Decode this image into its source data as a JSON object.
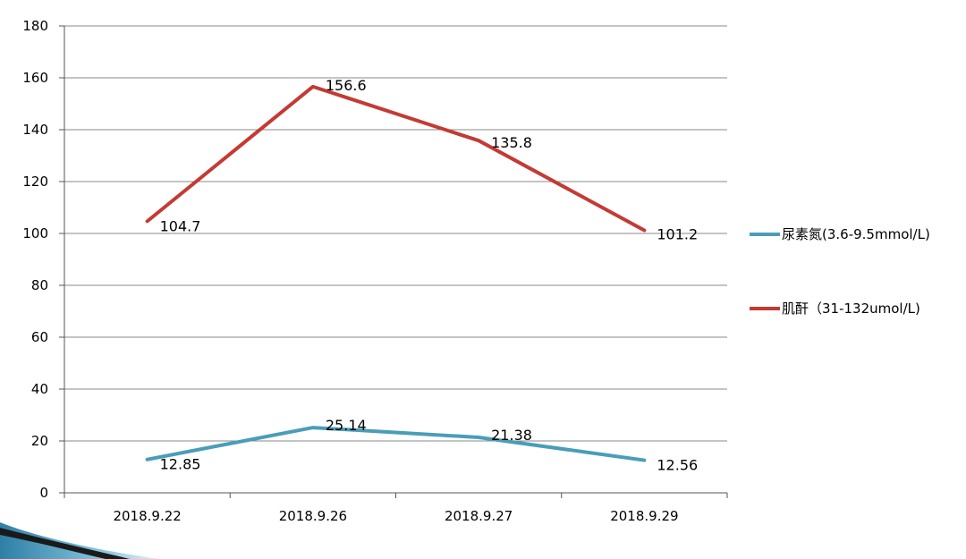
{
  "chart_data": {
    "type": "line",
    "title": "",
    "xlabel": "",
    "ylabel": "",
    "categories": [
      "2018.9.22",
      "2018.9.26",
      "2018.9.27",
      "2018.9.29"
    ],
    "ylim": [
      0,
      180
    ],
    "yticks": [
      "0",
      "20",
      "40",
      "60",
      "80",
      "100",
      "120",
      "140",
      "160",
      "180"
    ],
    "grid": true,
    "legend_position": "right",
    "series": [
      {
        "name": "尿素氮(3.6-9.5mmol/L)",
        "color": "#4A9DB8",
        "values": [
          12.85,
          25.14,
          21.38,
          12.56
        ],
        "labels": [
          "12.85",
          "25.14",
          "21.38",
          "12.56"
        ]
      },
      {
        "name": "肌酐（31-132umol/L)",
        "color": "#C43A34",
        "values": [
          104.7,
          156.6,
          135.8,
          101.2
        ],
        "labels": [
          "104.7",
          "156.6",
          "135.8",
          "101.2"
        ]
      }
    ]
  }
}
